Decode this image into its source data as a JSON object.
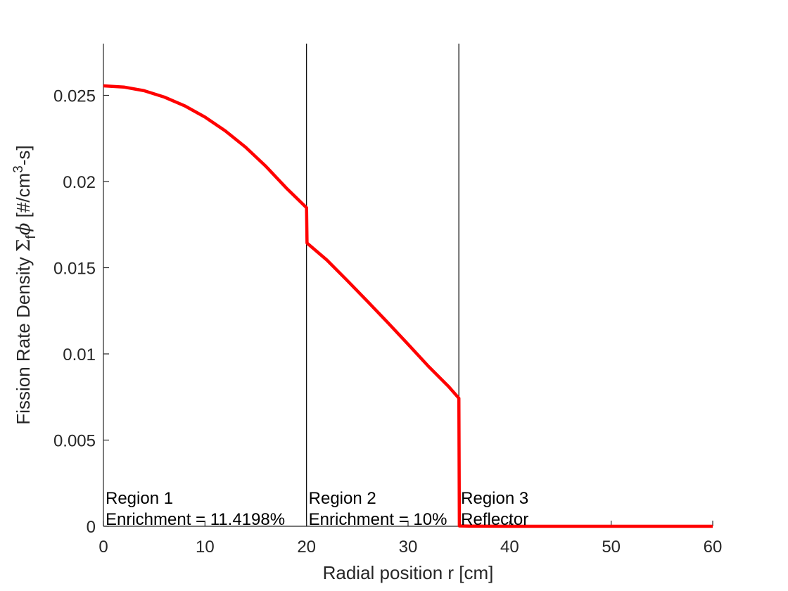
{
  "chart_data": {
    "type": "line",
    "xlabel": "Radial position r [cm]",
    "ylabel": {
      "prefix": "Fission Rate Density ",
      "sigma": "Σ",
      "sub": "f",
      "phi": "ϕ",
      "unit_open": " [#/cm",
      "sup": "3",
      "unit_close": "-s]"
    },
    "xlim": [
      0,
      60
    ],
    "ylim": [
      0,
      0.028
    ],
    "xticks": [
      0,
      10,
      20,
      30,
      40,
      50,
      60
    ],
    "xtick_labels": [
      "0",
      "10",
      "20",
      "30",
      "40",
      "50",
      "60"
    ],
    "yticks": [
      0,
      0.005,
      0.01,
      0.015,
      0.02,
      0.025
    ],
    "ytick_labels": [
      "0",
      "0.005",
      "0.01",
      "0.015",
      "0.02",
      "0.025"
    ],
    "grid": false,
    "region_boundaries": [
      20,
      35
    ],
    "regions": [
      {
        "name": "Region 1",
        "detail": "Enrichment = 11.4198%",
        "x_start": 0
      },
      {
        "name": "Region 2",
        "detail": "Enrichment = 10%",
        "x_start": 20
      },
      {
        "name": "Region 3",
        "detail": "Reflector",
        "x_start": 35
      }
    ],
    "series": [
      {
        "color": "#ff0000",
        "x": [
          0,
          2,
          4,
          6,
          8,
          10,
          12,
          14,
          16,
          18,
          20,
          20.05,
          22,
          24,
          26,
          28,
          30,
          32,
          34,
          35,
          35.05,
          36,
          40,
          45,
          50,
          55,
          60
        ],
        "y": [
          0.02555,
          0.02548,
          0.02527,
          0.0249,
          0.02439,
          0.02374,
          0.02294,
          0.02199,
          0.02088,
          0.01963,
          0.01848,
          0.01643,
          0.01545,
          0.01426,
          0.01305,
          0.01182,
          0.01056,
          0.00928,
          0.0081,
          0.00743,
          2e-05,
          1e-05,
          0.0,
          0.0,
          0.0,
          0.0,
          0.0
        ]
      }
    ]
  }
}
